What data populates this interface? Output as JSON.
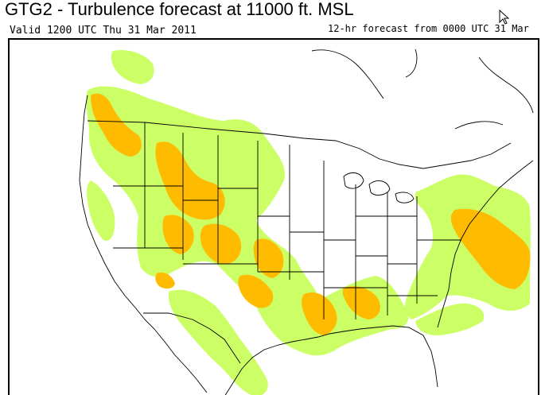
{
  "header": {
    "title": "GTG2 - Turbulence forecast at 11000 ft. MSL",
    "valid_time": "Valid 1200 UTC Thu 31 Mar 2011",
    "forecast_info": "12-hr forecast from 0000 UTC 31 Mar"
  },
  "map": {
    "region": "Continental United States",
    "layers": [
      "coastlines",
      "state-borders",
      "country-borders",
      "turbulence-contours"
    ],
    "colors": {
      "background": "#ffffff",
      "boundaries": "#000000",
      "light_turbulence": "#ccff66",
      "moderate_turbulence": "#ffbb00"
    }
  }
}
